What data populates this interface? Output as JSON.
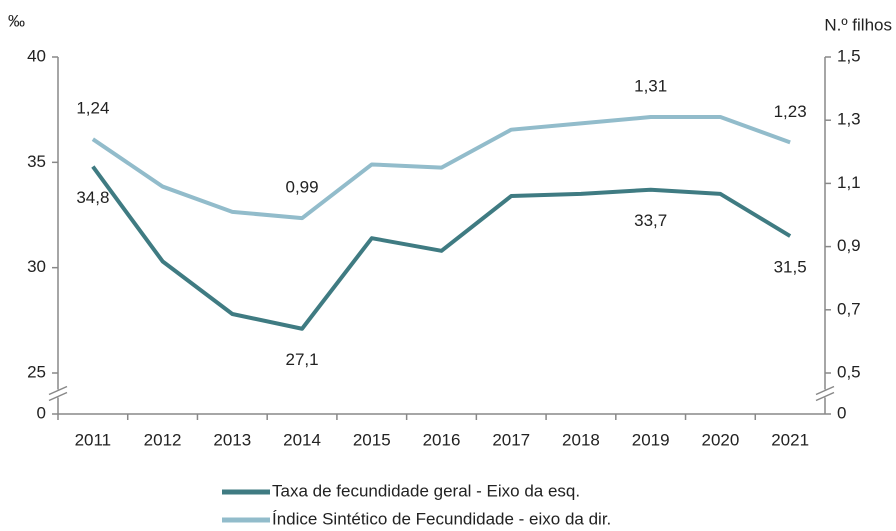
{
  "chart_data": {
    "type": "line",
    "y_label": "‰",
    "y2_label": "N.º filhos",
    "categories": [
      "2011",
      "2012",
      "2013",
      "2014",
      "2015",
      "2016",
      "2017",
      "2018",
      "2019",
      "2020",
      "2021"
    ],
    "series": [
      {
        "name": "Taxa de fecundidade geral - Eixo da esq.",
        "color": "#3f7b82",
        "values": [
          34.8,
          30.3,
          27.8,
          27.1,
          31.4,
          30.8,
          33.4,
          33.5,
          33.7,
          33.5,
          31.5
        ],
        "value_labels": [
          "34,8",
          null,
          null,
          "27,1",
          null,
          null,
          null,
          null,
          "33,7",
          null,
          "31,5"
        ]
      },
      {
        "name": "Índice Sintético de Fecundidade - eixo da dir.",
        "color": "#92bccb",
        "axis": "y2",
        "values": [
          1.24,
          1.09,
          1.01,
          0.99,
          1.16,
          1.15,
          1.27,
          1.29,
          1.31,
          1.31,
          1.23
        ],
        "value_labels": [
          "1,24",
          null,
          null,
          "0,99",
          null,
          null,
          null,
          null,
          "1,31",
          null,
          "1,23"
        ]
      }
    ],
    "ylim": [
      0,
      40
    ],
    "yticks": [
      0,
      25,
      30,
      35,
      40
    ],
    "y_break": [
      0,
      25
    ],
    "y2lim": [
      0,
      1.5
    ],
    "y2ticks": [
      0,
      {
        "value": 0.5,
        "label": "0,5"
      },
      {
        "value": 0.7,
        "label": "0,7"
      },
      {
        "value": 0.9,
        "label": "0,9"
      },
      {
        "value": 1.1,
        "label": "1,1"
      },
      {
        "value": 1.3,
        "label": "1,3"
      },
      {
        "value": 1.5,
        "label": "1,5"
      }
    ],
    "y2_break": [
      0,
      0.5
    ],
    "legend": "bottom"
  }
}
